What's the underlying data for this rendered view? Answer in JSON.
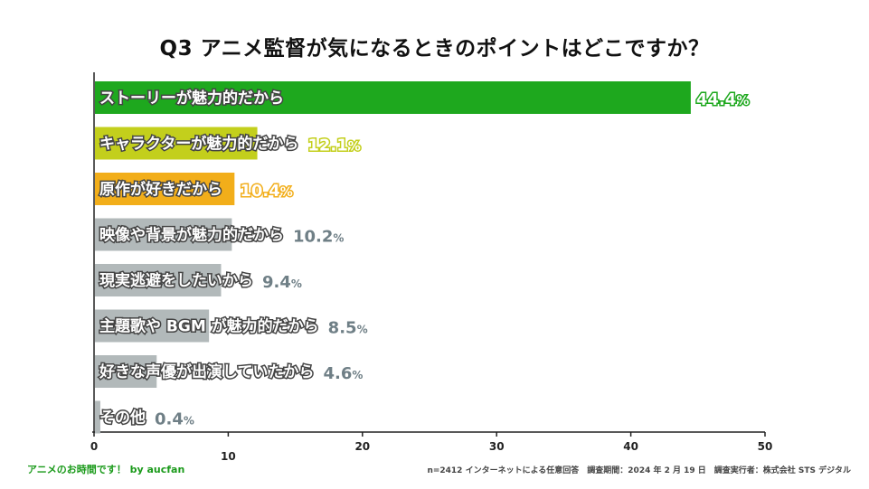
{
  "title": "Q3 アニメ監督が気になるときのポイントはどこですか？",
  "footer": {
    "brand": "アニメのお時間です！ by aucfan",
    "source": "n=2412 インターネットによる任意回答　調査期間：2024 年 2 月 19 日　調査実行者：株式会社 STS デジタル"
  },
  "chart_data": {
    "type": "bar",
    "orientation": "horizontal",
    "title": "Q3 アニメ監督が気になるときのポイントはどこですか？",
    "xlim": [
      0,
      50
    ],
    "ticks": [
      "0",
      "10",
      "20",
      "30",
      "40",
      "50"
    ],
    "tick_values": [
      0,
      10,
      20,
      30,
      40,
      50
    ],
    "value_suffix": "%",
    "bars": [
      {
        "label": "ストーリーが魅力的だから",
        "value": 44.4,
        "value_text": "44.4",
        "color": "#1ea81e"
      },
      {
        "label": "キャラクターが魅力的だから",
        "value": 12.1,
        "value_text": "12.1",
        "color": "#c3cf1c"
      },
      {
        "label": "原作が好きだから",
        "value": 10.4,
        "value_text": "10.4",
        "color": "#f2ae1a"
      },
      {
        "label": "映像や背景が魅力的だから",
        "value": 10.2,
        "value_text": "10.2",
        "color": "#b2b9ba"
      },
      {
        "label": "現実逃避をしたいから",
        "value": 9.4,
        "value_text": "9.4",
        "color": "#b2b9ba"
      },
      {
        "label": "主題歌や BGM が魅力的だから",
        "value": 8.5,
        "value_text": "8.5",
        "color": "#b2b9ba"
      },
      {
        "label": "好きな声優が出演していたから",
        "value": 4.6,
        "value_text": "4.6",
        "color": "#b2b9ba"
      },
      {
        "label": "その他",
        "value": 0.4,
        "value_text": "0.4",
        "color": "#b2b9ba"
      }
    ],
    "value_colors": {
      "highlight_1": "#1ea81e",
      "highlight_2": "#c3cf1c",
      "highlight_3": "#f2ae1a",
      "default": "#6f7f86"
    }
  }
}
